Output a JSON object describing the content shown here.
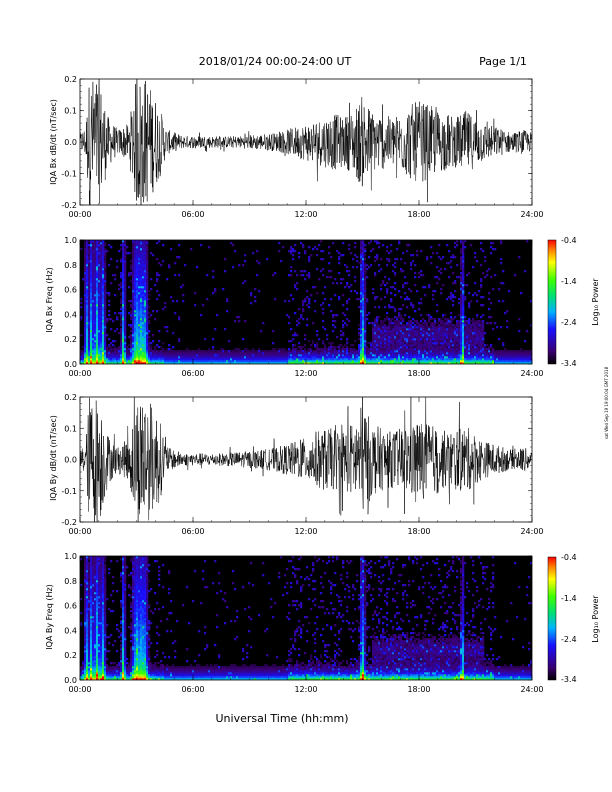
{
  "header": {
    "title": "2018/01/24  00:00-24:00 UT",
    "page": "Page 1/1"
  },
  "side_stamp": "sat Wed Sep 19 19:00:04 GMT 2018",
  "xlabel": "Universal Time (hh:mm)",
  "colorbar_ticks": [
    "-0.4",
    "-1.4",
    "-2.4",
    "-3.4"
  ],
  "colorbar_label": "Log₁₀ Power",
  "chart_data": [
    {
      "type": "line",
      "ylabel": "IQA Bx dB/dt (nT/sec)",
      "ylim": [
        -0.2,
        0.2
      ],
      "yticks": [
        "0.2",
        "0.1",
        "0.0",
        "-0.1",
        "-0.2"
      ],
      "xticks": [
        "00:00",
        "06:00",
        "12:00",
        "18:00",
        "24:00"
      ],
      "xlim_hours": [
        0,
        24
      ],
      "amplitude_envelope": {
        "hours": [
          0,
          0.3,
          0.5,
          0.7,
          1.0,
          1.5,
          2.0,
          2.6,
          3.0,
          3.5,
          4.2,
          4.6,
          5.5,
          6.5,
          7.5,
          8.5,
          9.5,
          10.5,
          11.5,
          12.0,
          12.5,
          13.0,
          13.5,
          14.0,
          14.5,
          15.0,
          15.5,
          16.0,
          16.5,
          17.0,
          17.5,
          18.0,
          18.5,
          19.0,
          19.5,
          20.0,
          20.5,
          21.0,
          21.5,
          22.0,
          22.5,
          23.0,
          23.5,
          24.0
        ],
        "values": [
          0.03,
          0.05,
          0.21,
          0.21,
          0.21,
          0.08,
          0.04,
          0.06,
          0.21,
          0.21,
          0.12,
          0.04,
          0.02,
          0.02,
          0.018,
          0.02,
          0.025,
          0.03,
          0.05,
          0.06,
          0.07,
          0.08,
          0.09,
          0.08,
          0.1,
          0.15,
          0.1,
          0.09,
          0.08,
          0.09,
          0.12,
          0.13,
          0.12,
          0.1,
          0.09,
          0.08,
          0.1,
          0.08,
          0.06,
          0.05,
          0.04,
          0.03,
          0.04,
          0.03
        ]
      }
    },
    {
      "type": "heatmap",
      "ylabel": "IQA Bx Freq (Hz)",
      "ylim": [
        0.0,
        1.0
      ],
      "yticks": [
        "1.0",
        "0.8",
        "0.6",
        "0.4",
        "0.2",
        "0.0"
      ],
      "xticks": [
        "00:00",
        "06:00",
        "12:00",
        "18:00",
        "24:00"
      ],
      "xlim_hours": [
        0,
        24
      ],
      "zlim_log10": [
        -3.4,
        -0.4
      ]
    },
    {
      "type": "line",
      "ylabel": "IQA By dB/dt (nT/sec)",
      "ylim": [
        -0.2,
        0.2
      ],
      "yticks": [
        "0.2",
        "0.1",
        "0.0",
        "-0.1",
        "-0.2"
      ],
      "xticks": [
        "00:00",
        "06:00",
        "12:00",
        "18:00",
        "24:00"
      ],
      "xlim_hours": [
        0,
        24
      ],
      "amplitude_envelope": {
        "hours": [
          0,
          0.3,
          0.5,
          0.7,
          1.0,
          1.5,
          2.0,
          2.6,
          3.0,
          3.5,
          4.2,
          4.6,
          5.5,
          6.5,
          7.5,
          8.5,
          9.5,
          10.5,
          11.5,
          12.0,
          12.5,
          13.0,
          13.5,
          14.0,
          14.5,
          15.0,
          15.5,
          16.0,
          16.5,
          17.0,
          17.5,
          18.0,
          18.5,
          19.0,
          19.5,
          20.0,
          20.5,
          21.0,
          21.5,
          22.0,
          22.5,
          23.0,
          23.5,
          24.0
        ],
        "values": [
          0.03,
          0.06,
          0.21,
          0.21,
          0.21,
          0.08,
          0.04,
          0.07,
          0.21,
          0.21,
          0.14,
          0.04,
          0.02,
          0.02,
          0.02,
          0.025,
          0.03,
          0.04,
          0.06,
          0.07,
          0.09,
          0.1,
          0.1,
          0.1,
          0.12,
          0.18,
          0.12,
          0.1,
          0.09,
          0.1,
          0.12,
          0.13,
          0.12,
          0.1,
          0.09,
          0.1,
          0.11,
          0.08,
          0.06,
          0.05,
          0.04,
          0.03,
          0.04,
          0.03
        ]
      }
    },
    {
      "type": "heatmap",
      "ylabel": "IQA By Freq (Hz)",
      "ylim": [
        0.0,
        1.0
      ],
      "yticks": [
        "1.0",
        "0.8",
        "0.6",
        "0.4",
        "0.2",
        "0.0"
      ],
      "xticks": [
        "00:00",
        "06:00",
        "12:00",
        "18:00",
        "24:00"
      ],
      "xlim_hours": [
        0,
        24
      ],
      "zlim_log10": [
        -3.4,
        -0.4
      ]
    }
  ]
}
